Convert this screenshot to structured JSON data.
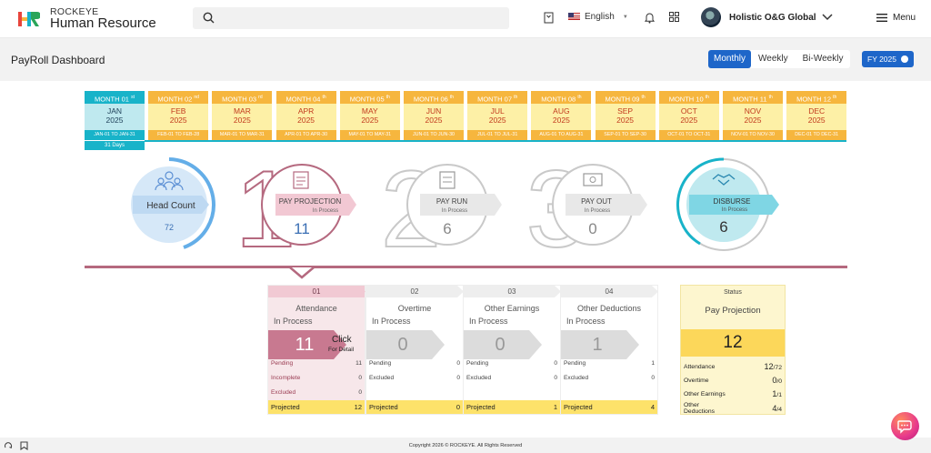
{
  "app": {
    "brand_top": "ROCKEYE",
    "brand_bottom": "Human Resource"
  },
  "header": {
    "language": "English",
    "org_name": "Holistic O&G Global",
    "menu_label": "Menu"
  },
  "page": {
    "title": "PayRoll Dashboard",
    "period_options": [
      "Monthly",
      "Weekly",
      "Bi-Weekly"
    ],
    "period_selected": "Monthly",
    "fy_label": "FY 2025"
  },
  "months": [
    {
      "head": "MONTH 01",
      "sup": "st",
      "name": "JAN",
      "year": "2025",
      "range": "JAN-01 TO JAN-31",
      "current": true
    },
    {
      "head": "MONTH 02",
      "sup": "nd",
      "name": "FEB",
      "year": "2025",
      "range": "FEB-01 TO FEB-28"
    },
    {
      "head": "MONTH 03",
      "sup": "rd",
      "name": "MAR",
      "year": "2025",
      "range": "MAR-01 TO MAR-31"
    },
    {
      "head": "MONTH 04",
      "sup": "th",
      "name": "APR",
      "year": "2025",
      "range": "APR-01 TO APR-30"
    },
    {
      "head": "MONTH 05",
      "sup": "th",
      "name": "MAY",
      "year": "2025",
      "range": "MAY-01 TO MAY-31"
    },
    {
      "head": "MONTH 06",
      "sup": "th",
      "name": "JUN",
      "year": "2025",
      "range": "JUN-01 TO JUN-30"
    },
    {
      "head": "MONTH 07",
      "sup": "th",
      "name": "JUL",
      "year": "2025",
      "range": "JUL-01 TO JUL-31"
    },
    {
      "head": "MONTH 08",
      "sup": "th",
      "name": "AUG",
      "year": "2025",
      "range": "AUG-01 TO AUG-31"
    },
    {
      "head": "MONTH 09",
      "sup": "th",
      "name": "SEP",
      "year": "2025",
      "range": "SEP-01 TO SEP-30"
    },
    {
      "head": "MONTH 10",
      "sup": "th",
      "name": "OCT",
      "year": "2025",
      "range": "OCT-01 TO OCT-31"
    },
    {
      "head": "MONTH 11",
      "sup": "th",
      "name": "NOV",
      "year": "2025",
      "range": "NOV-01 TO NOV-30"
    },
    {
      "head": "MONTH 12",
      "sup": "th",
      "name": "DEC",
      "year": "2025",
      "range": "DEC-01 TO DEC-31"
    }
  ],
  "current_days": "31 Days",
  "process": {
    "head_count": {
      "label": "Head Count",
      "value": "72"
    },
    "steps": [
      {
        "digit": "1",
        "label": "PAY PROJECTION",
        "status": "In Process",
        "value": "11"
      },
      {
        "digit": "2",
        "label": "PAY RUN",
        "status": "In Process",
        "value": "6"
      },
      {
        "digit": "3",
        "label": "PAY OUT",
        "status": "In Process",
        "value": "0"
      }
    ],
    "disburse": {
      "label": "DISBURSE",
      "status": "In Process",
      "value": "6"
    }
  },
  "cards": [
    {
      "num": "01",
      "title": "Attendance",
      "status": "In Process",
      "value": "11",
      "click": "Click",
      "click_sub": "For Detail",
      "rows": [
        {
          "label": "Pending",
          "value": "11"
        },
        {
          "label": "Incomplete",
          "value": "0"
        },
        {
          "label": "Excluded",
          "value": "0"
        }
      ],
      "projected": "12"
    },
    {
      "num": "02",
      "title": "Overtime",
      "status": "In Process",
      "value": "0",
      "rows": [
        {
          "label": "Pending",
          "value": "0"
        },
        {
          "label": "Excluded",
          "value": "0"
        }
      ],
      "projected": "0"
    },
    {
      "num": "03",
      "title": "Other Earnings",
      "status": "In Process",
      "value": "0",
      "rows": [
        {
          "label": "Pending",
          "value": "0"
        },
        {
          "label": "Excluded",
          "value": "0"
        }
      ],
      "projected": "1"
    },
    {
      "num": "04",
      "title": "Other Deductions",
      "status": "In Process",
      "value": "1",
      "rows": [
        {
          "label": "Pending",
          "value": "1"
        },
        {
          "label": "Excluded",
          "value": "0"
        }
      ],
      "projected": "4"
    }
  ],
  "projected_label": "Projected",
  "status_panel": {
    "heading": "Status",
    "title": "Pay Projection",
    "value": "12",
    "rows": [
      {
        "label": "Attendance",
        "value": "12",
        "total": "/72"
      },
      {
        "label": "Overtime",
        "value": "0",
        "total": "/0"
      },
      {
        "label": "Other Earnings",
        "value": "1",
        "total": "/1"
      },
      {
        "label": "Other Deductions",
        "value": "4",
        "total": "/4"
      }
    ]
  },
  "footer": {
    "copyright": "Copyright 2026 © ROCKEYE. All Rights Reserved"
  },
  "colors": {
    "primary": "#1e66c9",
    "teal": "#18b3c9",
    "rose": "#b5697f",
    "amber": "#f6b63e"
  }
}
